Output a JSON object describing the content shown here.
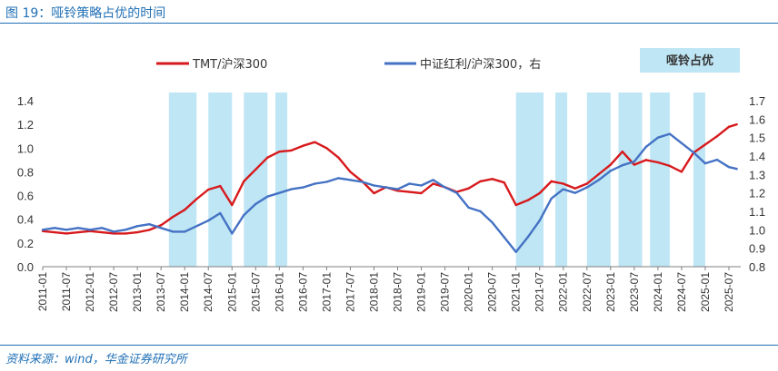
{
  "figure_title": "图 19：哑铃策略占优的时间",
  "source_note": "资料来源：wind，华金证券研究所",
  "chart_data": {
    "type": "line",
    "legend_placement": "top",
    "grid": false,
    "series": [
      {
        "name": "TMT/沪深300",
        "axis": "left",
        "color": "#d7191c",
        "points": [
          [
            "2011-01",
            0.3
          ],
          [
            "2011-04",
            0.29
          ],
          [
            "2011-07",
            0.28
          ],
          [
            "2011-10",
            0.29
          ],
          [
            "2012-01",
            0.3
          ],
          [
            "2012-04",
            0.29
          ],
          [
            "2012-07",
            0.28
          ],
          [
            "2012-10",
            0.28
          ],
          [
            "2013-01",
            0.29
          ],
          [
            "2013-04",
            0.31
          ],
          [
            "2013-07",
            0.35
          ],
          [
            "2013-10",
            0.42
          ],
          [
            "2014-01",
            0.48
          ],
          [
            "2014-04",
            0.57
          ],
          [
            "2014-07",
            0.65
          ],
          [
            "2014-10",
            0.68
          ],
          [
            "2015-01",
            0.52
          ],
          [
            "2015-04",
            0.72
          ],
          [
            "2015-07",
            0.82
          ],
          [
            "2015-10",
            0.92
          ],
          [
            "2016-01",
            0.97
          ],
          [
            "2016-04",
            0.98
          ],
          [
            "2016-07",
            1.02
          ],
          [
            "2016-10",
            1.05
          ],
          [
            "2017-01",
            1.0
          ],
          [
            "2017-04",
            0.92
          ],
          [
            "2017-07",
            0.8
          ],
          [
            "2017-10",
            0.72
          ],
          [
            "2018-01",
            0.62
          ],
          [
            "2018-04",
            0.67
          ],
          [
            "2018-07",
            0.64
          ],
          [
            "2018-10",
            0.63
          ],
          [
            "2019-01",
            0.62
          ],
          [
            "2019-04",
            0.7
          ],
          [
            "2019-07",
            0.67
          ],
          [
            "2019-10",
            0.63
          ],
          [
            "2020-01",
            0.66
          ],
          [
            "2020-04",
            0.72
          ],
          [
            "2020-07",
            0.74
          ],
          [
            "2020-10",
            0.71
          ],
          [
            "2021-01",
            0.52
          ],
          [
            "2021-04",
            0.56
          ],
          [
            "2021-07",
            0.62
          ],
          [
            "2021-10",
            0.72
          ],
          [
            "2022-01",
            0.7
          ],
          [
            "2022-04",
            0.66
          ],
          [
            "2022-07",
            0.7
          ],
          [
            "2022-10",
            0.78
          ],
          [
            "2023-01",
            0.86
          ],
          [
            "2023-04",
            0.97
          ],
          [
            "2023-07",
            0.86
          ],
          [
            "2023-10",
            0.9
          ],
          [
            "2024-01",
            0.88
          ],
          [
            "2024-04",
            0.85
          ],
          [
            "2024-07",
            0.8
          ],
          [
            "2024-10",
            0.96
          ],
          [
            "2025-01",
            1.03
          ],
          [
            "2025-04",
            1.1
          ],
          [
            "2025-07",
            1.18
          ],
          [
            "2025-09",
            1.2
          ]
        ]
      },
      {
        "name": "中证红利/沪深300，右",
        "axis": "right",
        "color": "#4472c4",
        "points": [
          [
            "2011-01",
            1.0
          ],
          [
            "2011-04",
            1.01
          ],
          [
            "2011-07",
            1.0
          ],
          [
            "2011-10",
            1.01
          ],
          [
            "2012-01",
            1.0
          ],
          [
            "2012-04",
            1.01
          ],
          [
            "2012-07",
            0.99
          ],
          [
            "2012-10",
            1.0
          ],
          [
            "2013-01",
            1.02
          ],
          [
            "2013-04",
            1.03
          ],
          [
            "2013-07",
            1.01
          ],
          [
            "2013-10",
            0.99
          ],
          [
            "2014-01",
            0.99
          ],
          [
            "2014-04",
            1.02
          ],
          [
            "2014-07",
            1.05
          ],
          [
            "2014-10",
            1.09
          ],
          [
            "2015-01",
            0.98
          ],
          [
            "2015-04",
            1.08
          ],
          [
            "2015-07",
            1.14
          ],
          [
            "2015-10",
            1.18
          ],
          [
            "2016-01",
            1.2
          ],
          [
            "2016-04",
            1.22
          ],
          [
            "2016-07",
            1.23
          ],
          [
            "2016-10",
            1.25
          ],
          [
            "2017-01",
            1.26
          ],
          [
            "2017-04",
            1.28
          ],
          [
            "2017-07",
            1.27
          ],
          [
            "2017-10",
            1.26
          ],
          [
            "2018-01",
            1.24
          ],
          [
            "2018-04",
            1.23
          ],
          [
            "2018-07",
            1.22
          ],
          [
            "2018-10",
            1.25
          ],
          [
            "2019-01",
            1.24
          ],
          [
            "2019-04",
            1.27
          ],
          [
            "2019-07",
            1.23
          ],
          [
            "2019-10",
            1.2
          ],
          [
            "2020-01",
            1.12
          ],
          [
            "2020-04",
            1.1
          ],
          [
            "2020-07",
            1.04
          ],
          [
            "2020-10",
            0.96
          ],
          [
            "2021-01",
            0.88
          ],
          [
            "2021-04",
            0.96
          ],
          [
            "2021-07",
            1.05
          ],
          [
            "2021-10",
            1.17
          ],
          [
            "2022-01",
            1.22
          ],
          [
            "2022-04",
            1.2
          ],
          [
            "2022-07",
            1.23
          ],
          [
            "2022-10",
            1.27
          ],
          [
            "2023-01",
            1.32
          ],
          [
            "2023-04",
            1.35
          ],
          [
            "2023-07",
            1.37
          ],
          [
            "2023-10",
            1.45
          ],
          [
            "2024-01",
            1.5
          ],
          [
            "2024-04",
            1.52
          ],
          [
            "2024-07",
            1.47
          ],
          [
            "2024-10",
            1.42
          ],
          [
            "2025-01",
            1.36
          ],
          [
            "2025-04",
            1.38
          ],
          [
            "2025-07",
            1.34
          ],
          [
            "2025-09",
            1.33
          ]
        ]
      }
    ],
    "highlight_legend": "哑铃占优",
    "highlight_color": "#bfe6f4",
    "highlight_periods": [
      [
        "2013-09",
        "2014-04"
      ],
      [
        "2014-07",
        "2015-01"
      ],
      [
        "2015-04",
        "2015-10"
      ],
      [
        "2015-12",
        "2016-03"
      ],
      [
        "2021-01",
        "2021-08"
      ],
      [
        "2021-11",
        "2022-02"
      ],
      [
        "2022-07",
        "2023-01"
      ],
      [
        "2023-03",
        "2023-09"
      ],
      [
        "2023-11",
        "2024-04"
      ],
      [
        "2024-10",
        "2025-01"
      ]
    ],
    "x_range": [
      "2011-01",
      "2025-10"
    ],
    "x_ticks": [
      "2011-01",
      "2011-07",
      "2012-01",
      "2012-07",
      "2013-01",
      "2013-07",
      "2014-01",
      "2014-07",
      "2015-01",
      "2015-07",
      "2016-01",
      "2016-07",
      "2017-01",
      "2017-07",
      "2018-01",
      "2018-07",
      "2019-01",
      "2019-07",
      "2020-01",
      "2020-07",
      "2021-01",
      "2021-07",
      "2022-01",
      "2022-07",
      "2023-01",
      "2023-07",
      "2024-01",
      "2024-07",
      "2025-01",
      "2025-07"
    ],
    "ylim_left": [
      0.0,
      1.4
    ],
    "y_ticks_left": [
      "0.0",
      "0.2",
      "0.4",
      "0.6",
      "0.8",
      "1.0",
      "1.2",
      "1.4"
    ],
    "ylim_right": [
      0.8,
      1.7
    ],
    "y_ticks_right": [
      "0.8",
      "0.9",
      "1.0",
      "1.1",
      "1.2",
      "1.3",
      "1.4",
      "1.5",
      "1.6",
      "1.7"
    ]
  }
}
